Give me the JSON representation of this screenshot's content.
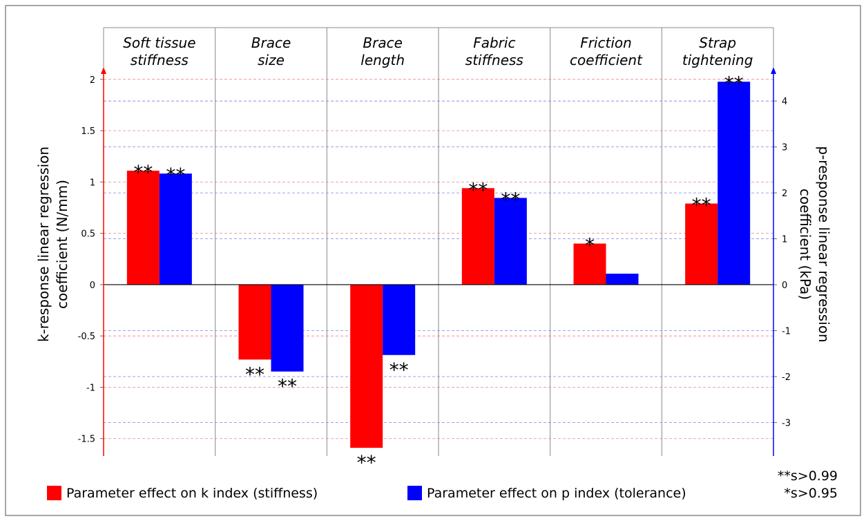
{
  "chart_data": {
    "type": "bar",
    "categories": [
      [
        "Soft tissue",
        "stiffness"
      ],
      [
        "Brace",
        "size"
      ],
      [
        "Brace",
        "length"
      ],
      [
        "Fabric",
        "stiffness"
      ],
      [
        "Friction",
        "coefficient"
      ],
      [
        "Strap",
        "tightening"
      ]
    ],
    "series": [
      {
        "name": "Parameter effect on k index (stiffness)",
        "color": "#ff0000",
        "axis": "y",
        "values": [
          1.11,
          -0.73,
          -1.59,
          0.94,
          0.4,
          0.79
        ],
        "significance": [
          "**",
          "**",
          "**",
          "**",
          "*",
          "**"
        ]
      },
      {
        "name": "Parameter effect on p index (tolerance)",
        "color": "#0000ff",
        "axis": "y2",
        "values": [
          2.42,
          -1.89,
          -1.53,
          1.89,
          0.24,
          4.42
        ],
        "significance": [
          "**",
          "**",
          "**",
          "**",
          null,
          "**"
        ]
      }
    ],
    "ylabel": [
      "k-response linear regression",
      "coefficient (N/mm)"
    ],
    "y2label": [
      "p-response linear regression",
      "coefficient (kPa)"
    ],
    "ylim": [
      -1.67,
      2.12
    ],
    "yticks": [
      -1.5,
      -1,
      -0.5,
      0,
      0.5,
      1,
      1.5,
      2
    ],
    "y2lim": [
      -3.73,
      4.74
    ],
    "y2ticks": [
      -3,
      -2,
      -1,
      0,
      1,
      2,
      3,
      4
    ],
    "ycolor": "#ff0000",
    "y2color": "#0000ff",
    "grid": true,
    "notes": [
      "**s>0.99",
      "*s>0.95"
    ]
  }
}
